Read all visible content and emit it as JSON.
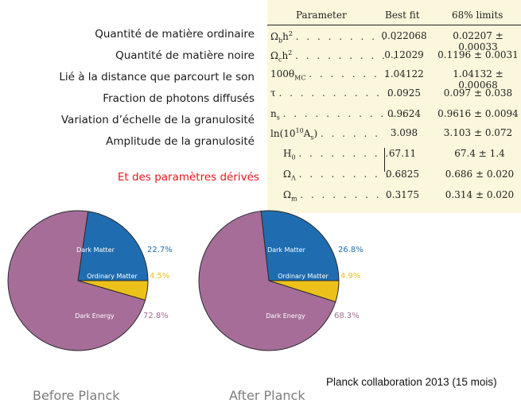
{
  "labels": [
    "Quantité de matière ordinaire",
    "Quantité de matière noire",
    "Lié à la distance que parcourt le son",
    "Fraction de photons diffusés",
    "Variation d’échelle de la granulosité",
    "Amplitude de la granulosité"
  ],
  "derived_label": "Et des paramètres dérivés",
  "table": {
    "headers": {
      "parameter": "Parameter",
      "best_fit": "Best fit",
      "limits": "68% limits"
    },
    "rows": [
      {
        "best_fit": "0.022068",
        "limits": "0.02207 ± 0.00033"
      },
      {
        "best_fit": "0.12029",
        "limits": "0.1196 ± 0.0031"
      },
      {
        "best_fit": "1.04122",
        "limits": "1.04132 ± 0.00068"
      },
      {
        "best_fit": "0.0925",
        "limits": "0.097 ± 0.038"
      },
      {
        "best_fit": "0.9624",
        "limits": "0.9616 ± 0.0094"
      },
      {
        "best_fit": "3.098",
        "limits": "3.103 ± 0.072"
      }
    ],
    "derived_rows": [
      {
        "best_fit": "67.11",
        "limits": "67.4 ± 1.4"
      },
      {
        "best_fit": "0.6825",
        "limits": "0.686 ± 0.020"
      },
      {
        "best_fit": "0.3175",
        "limits": "0.314 ± 0.020"
      }
    ]
  },
  "chart_data": [
    {
      "type": "pie",
      "title": "Before Planck",
      "slices": [
        {
          "label": "Dark Matter",
          "value": 22.7,
          "value_label": "22.7%",
          "color": "#1f6db0"
        },
        {
          "label": "Ordinary Matter",
          "value": 4.5,
          "value_label": "4.5%",
          "color": "#ecc21a"
        },
        {
          "label": "Dark Energy",
          "value": 72.8,
          "value_label": "72.8%",
          "color": "#a66d99"
        }
      ]
    },
    {
      "type": "pie",
      "title": "After Planck",
      "slices": [
        {
          "label": "Dark Matter",
          "value": 26.8,
          "value_label": "26.8%",
          "color": "#1f6db0"
        },
        {
          "label": "Ordinary Matter",
          "value": 4.9,
          "value_label": "4.9%",
          "color": "#ecc21a"
        },
        {
          "label": "Dark Energy",
          "value": 68.3,
          "value_label": "68.3%",
          "color": "#a66d99"
        }
      ]
    }
  ],
  "credit": "Planck collaboration 2013 (15 mois)"
}
